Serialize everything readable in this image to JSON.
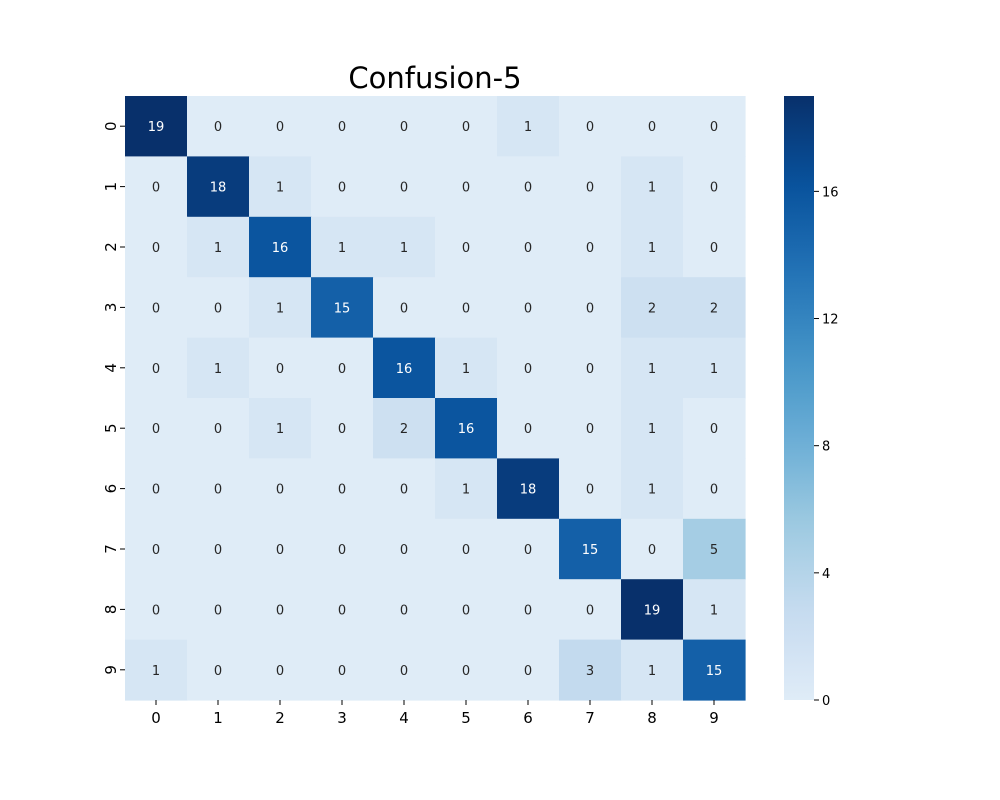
{
  "chart_data": {
    "type": "heatmap",
    "title": "Confusion-5",
    "xlabel": "",
    "ylabel": "",
    "x_tick_labels": [
      "0",
      "1",
      "2",
      "3",
      "4",
      "5",
      "6",
      "7",
      "8",
      "9"
    ],
    "y_tick_labels": [
      "0",
      "1",
      "2",
      "3",
      "4",
      "5",
      "6",
      "7",
      "8",
      "9"
    ],
    "matrix": [
      [
        19,
        0,
        0,
        0,
        0,
        0,
        1,
        0,
        0,
        0
      ],
      [
        0,
        18,
        1,
        0,
        0,
        0,
        0,
        0,
        1,
        0
      ],
      [
        0,
        1,
        16,
        1,
        1,
        0,
        0,
        0,
        1,
        0
      ],
      [
        0,
        0,
        1,
        15,
        0,
        0,
        0,
        0,
        2,
        2
      ],
      [
        0,
        1,
        0,
        0,
        16,
        1,
        0,
        0,
        1,
        1
      ],
      [
        0,
        0,
        1,
        0,
        2,
        16,
        0,
        0,
        1,
        0
      ],
      [
        0,
        0,
        0,
        0,
        0,
        1,
        18,
        0,
        1,
        0
      ],
      [
        0,
        0,
        0,
        0,
        0,
        0,
        0,
        15,
        0,
        5
      ],
      [
        0,
        0,
        0,
        0,
        0,
        0,
        0,
        0,
        19,
        1
      ],
      [
        1,
        0,
        0,
        0,
        0,
        0,
        0,
        3,
        1,
        15
      ]
    ],
    "colormap": "Blues",
    "color_range": [
      0,
      19
    ],
    "colorbar": {
      "ticks": [
        0,
        4,
        8,
        12,
        16
      ],
      "tick_labels": [
        "0",
        "4",
        "8",
        "12",
        "16"
      ],
      "placement": "right"
    },
    "annotations": true
  }
}
